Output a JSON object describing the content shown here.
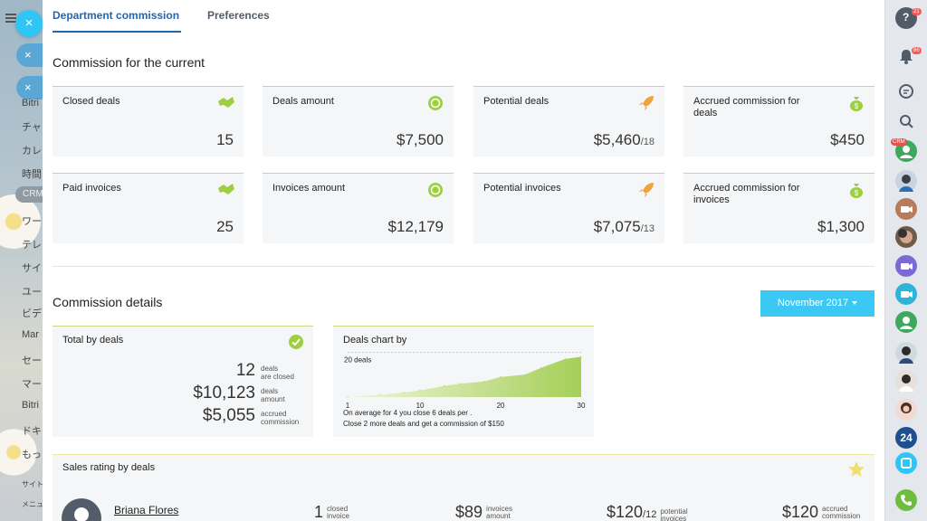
{
  "background_menu": {
    "items": [
      "Bitri",
      "チャ",
      "カレ",
      "時間",
      "ワー",
      "テレ",
      "サイ",
      "ユー",
      "ビデ",
      "Mar",
      "セー",
      "マー",
      "Bitri",
      "ドキ",
      "もっ",
      "サイト",
      "メニュ"
    ],
    "crm_tag": "CRM"
  },
  "close_button": "×",
  "tabs": {
    "active": "Department commission",
    "inactive": "Preferences"
  },
  "current": {
    "title": "Commission for the current",
    "cards": [
      {
        "label": "Closed deals",
        "value": "15",
        "suffix": "",
        "icon": "handshake-icon"
      },
      {
        "label": "Deals amount",
        "value": "$7,500",
        "suffix": "",
        "icon": "coins-icon"
      },
      {
        "label": "Potential deals",
        "value": "$5,460",
        "suffix": "/18",
        "icon": "rocket-icon"
      },
      {
        "label": "Accrued commission for deals",
        "value": "$450",
        "suffix": "",
        "icon": "money-bag-icon"
      },
      {
        "label": "Paid invoices",
        "value": "25",
        "suffix": "",
        "icon": "handshake-icon"
      },
      {
        "label": "Invoices amount",
        "value": "$12,179",
        "suffix": "",
        "icon": "coins-icon"
      },
      {
        "label": "Potential invoices",
        "value": "$7,075",
        "suffix": "/13",
        "icon": "rocket-icon"
      },
      {
        "label": "Accrued commission for invoices",
        "value": "$1,300",
        "suffix": "",
        "icon": "money-bag-icon"
      }
    ]
  },
  "details": {
    "title": "Commission details",
    "month": "November 2017",
    "total": {
      "label": "Total by deals",
      "rows": [
        {
          "num": "12",
          "cap1": "deals",
          "cap2": "are closed"
        },
        {
          "num": "$10,123",
          "cap1": "deals",
          "cap2": "amount"
        },
        {
          "num": "$5,055",
          "cap1": "accrued",
          "cap2": "commission"
        }
      ]
    },
    "chart": {
      "label": "Deals chart by",
      "line_label": "20 deals",
      "note1": "On average for 4 you close 6 deals per .",
      "note2": "Close 2 more deals and get a commission of $150"
    }
  },
  "chart_data": {
    "type": "area",
    "x": [
      1,
      5,
      8,
      10,
      13,
      15,
      18,
      20,
      23,
      25,
      28,
      30
    ],
    "values": [
      0,
      1,
      2,
      3,
      5,
      6,
      7,
      9,
      10,
      13,
      17,
      18
    ],
    "x_ticks": [
      "1",
      "10",
      "20",
      "30"
    ],
    "target": 20,
    "target_label": "20 deals",
    "xlim": [
      1,
      30
    ],
    "ylim": [
      0,
      21
    ],
    "color": "#a6cf58"
  },
  "rating": {
    "label": "Sales rating by deals",
    "person": "Briana Flores",
    "stats": [
      {
        "num": "1",
        "sub": "",
        "cap1": "closed",
        "cap2": "invoice"
      },
      {
        "num": "$89",
        "sub": "",
        "cap1": "invoices",
        "cap2": "amount"
      },
      {
        "num": "$120",
        "sub": "/12",
        "cap1": "potential",
        "cap2": "invoices"
      },
      {
        "num": "$120",
        "sub": "",
        "cap1": "accrued",
        "cap2": "commission"
      }
    ]
  },
  "sidebar": {
    "help_badge": "21",
    "notif_badge": "86",
    "crm_tag": "CRM",
    "counter": "24"
  },
  "colors": {
    "accent": "#2067b0",
    "month_button": "#3bc8f5",
    "icon_green": "#9dcf3f",
    "icon_orange": "#f2a43a"
  }
}
